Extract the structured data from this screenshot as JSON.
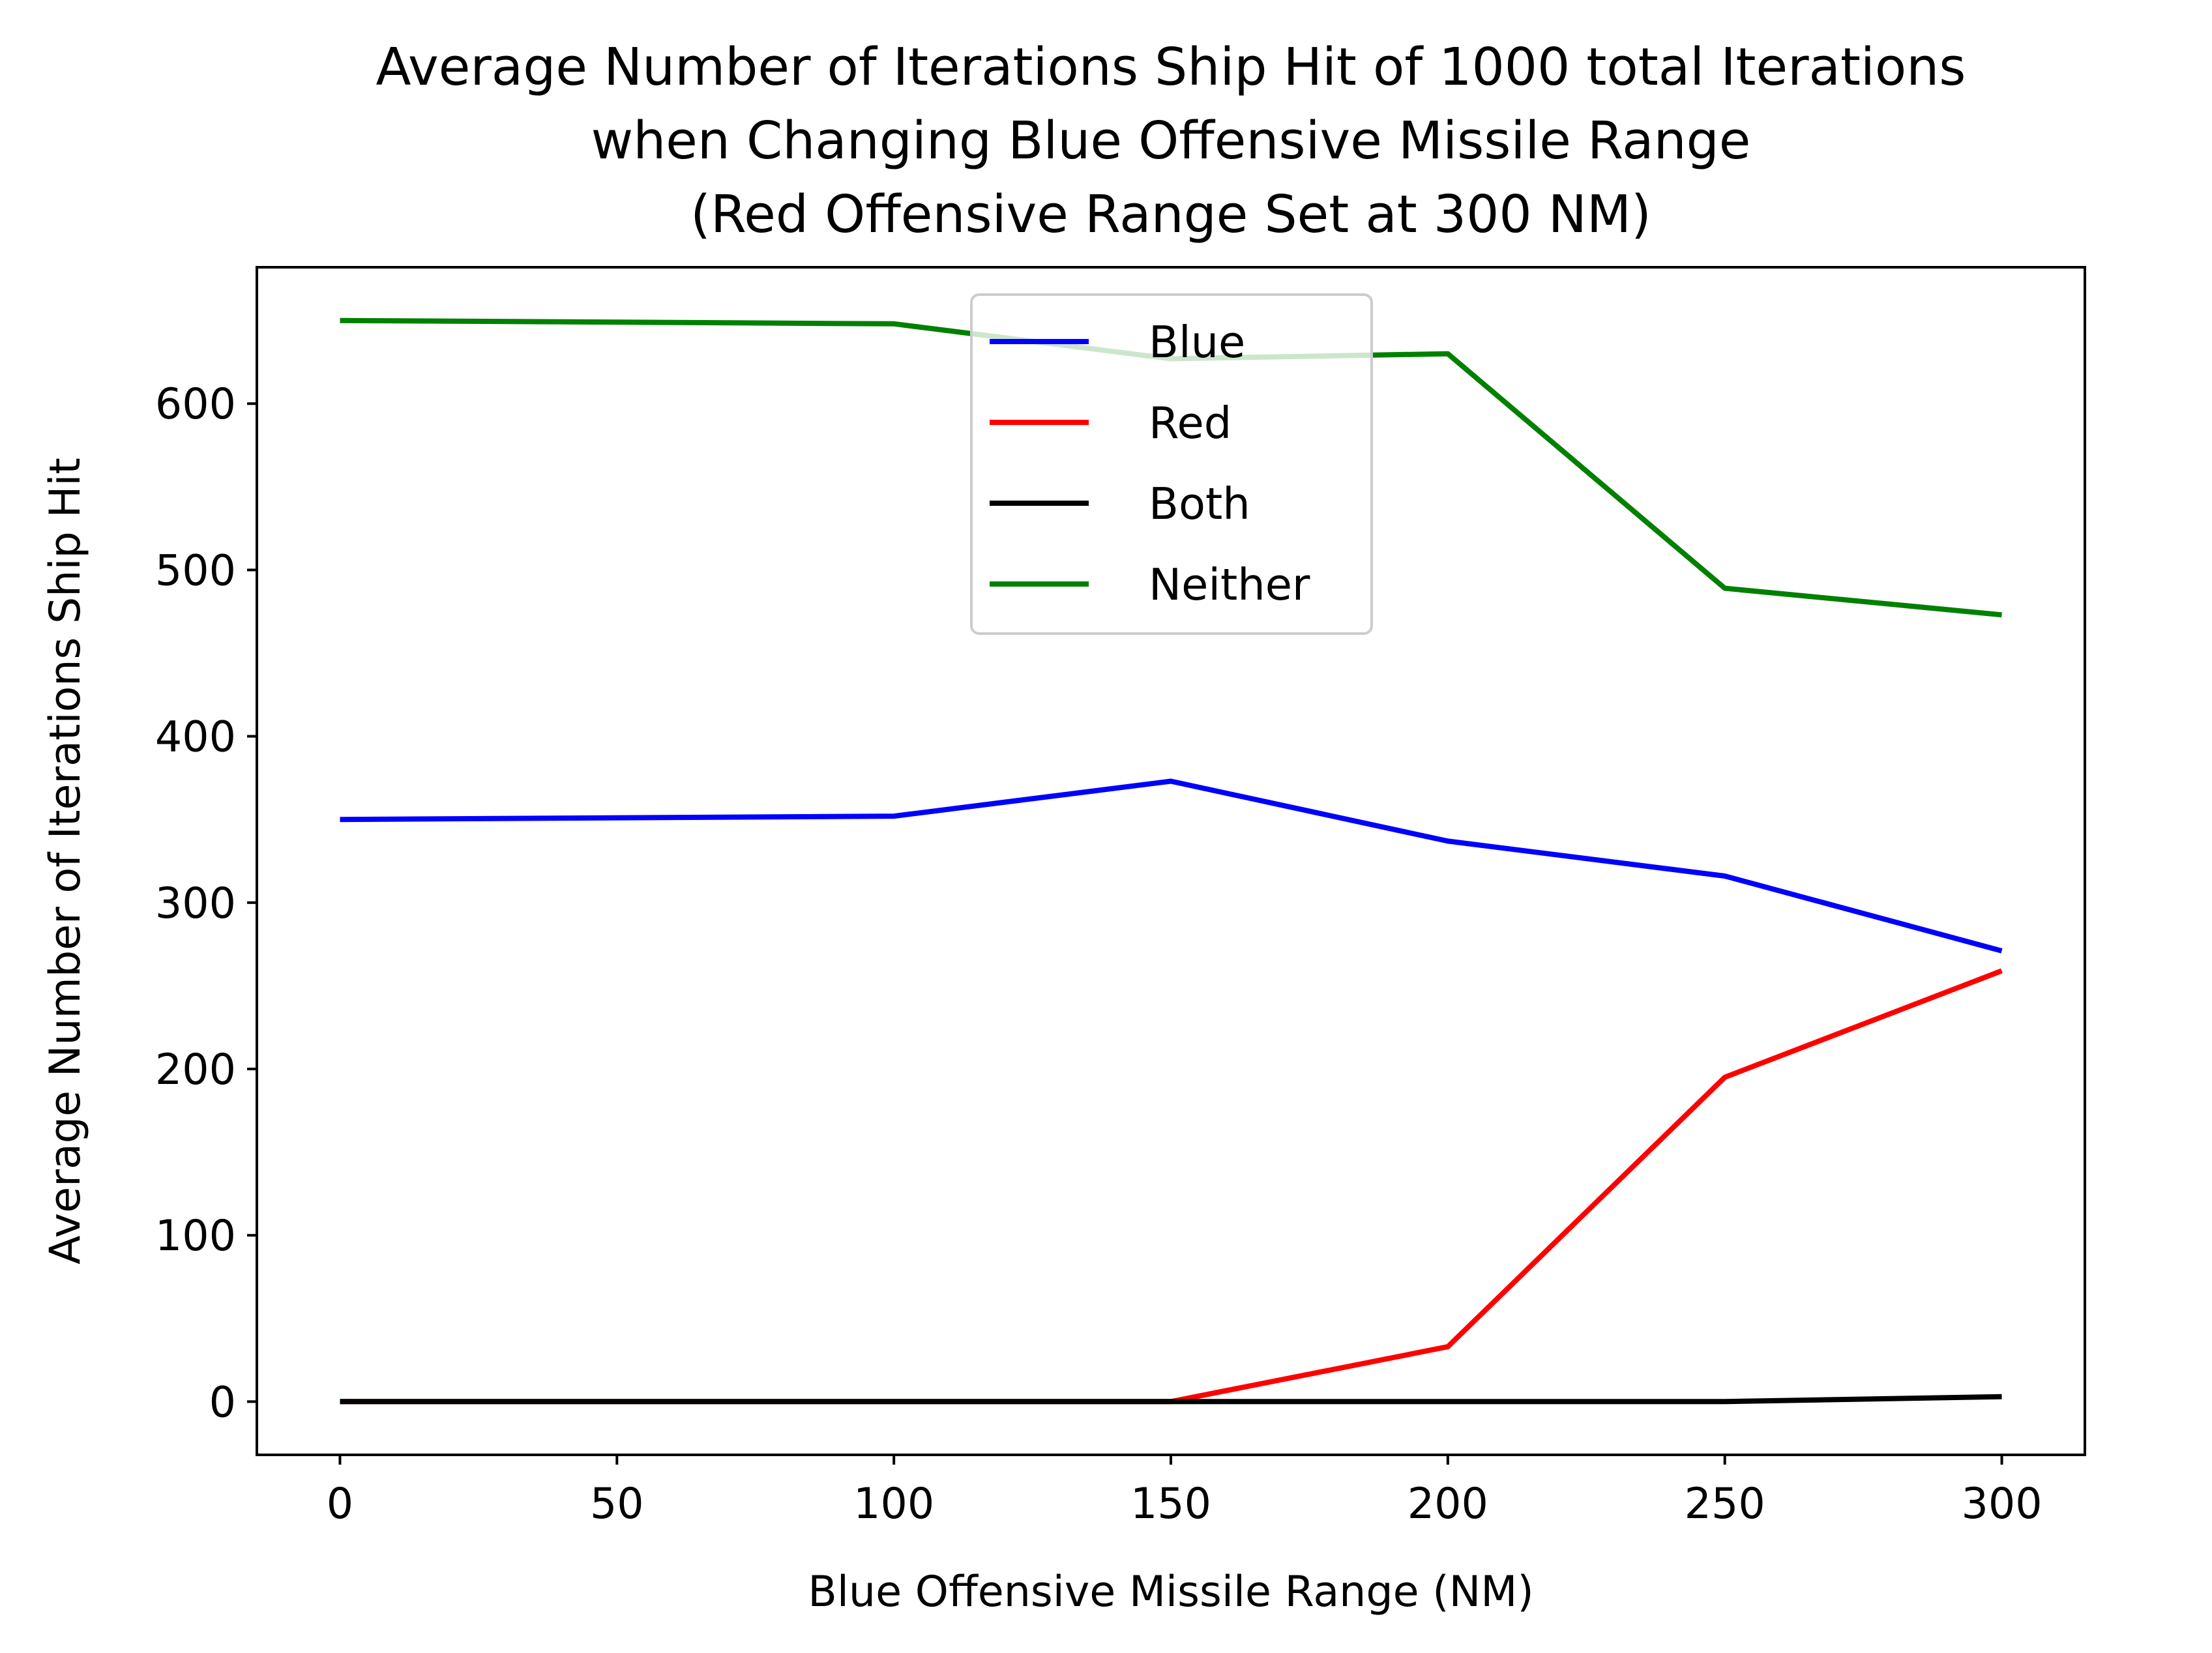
{
  "chart_data": {
    "type": "line",
    "title": [
      "Average Number of Iterations Ship Hit of 1000 total Iterations",
      "when Changing Blue Offensive Missile Range",
      "(Red Offensive Range Set at 300 NM)"
    ],
    "xlabel": "Blue Offensive Missile Range (NM)",
    "ylabel": "Average Number of Iterations Ship Hit",
    "xlim": [
      -15,
      315
    ],
    "ylim": [
      -32,
      682
    ],
    "xticks": [
      0,
      50,
      100,
      150,
      200,
      250,
      300
    ],
    "yticks": [
      0,
      100,
      200,
      300,
      400,
      500,
      600
    ],
    "grid": false,
    "legend_position": "upper center",
    "x": [
      0,
      100,
      150,
      200,
      250,
      300
    ],
    "series": [
      {
        "name": "Blue",
        "color": "#0000ff",
        "values": [
          350,
          352,
          373,
          337,
          316,
          271
        ]
      },
      {
        "name": "Red",
        "color": "#ff0000",
        "values": [
          0,
          0,
          0,
          33,
          195,
          259
        ]
      },
      {
        "name": "Both",
        "color": "#000000",
        "values": [
          0,
          0,
          0,
          0,
          0,
          3
        ]
      },
      {
        "name": "Neither",
        "color": "#008000",
        "values": [
          650,
          648,
          627,
          630,
          489,
          473
        ]
      }
    ]
  }
}
